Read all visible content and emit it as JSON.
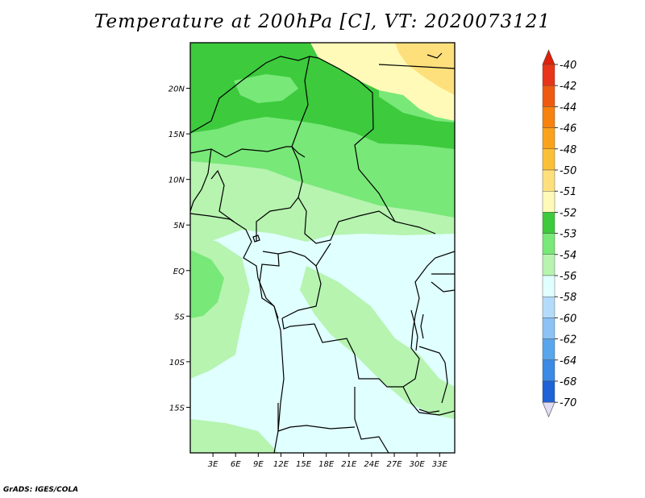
{
  "title": "Temperature at 200hPa [C], VT: 2020073121",
  "credit": "GrADS: IGES/COLA",
  "map": {
    "lon_range": [
      0,
      35
    ],
    "lat_range": [
      -20,
      25
    ],
    "lon_ticks": [
      {
        "value": 3,
        "label": "3E"
      },
      {
        "value": 6,
        "label": "6E"
      },
      {
        "value": 9,
        "label": "9E"
      },
      {
        "value": 12,
        "label": "12E"
      },
      {
        "value": 15,
        "label": "15E"
      },
      {
        "value": 18,
        "label": "18E"
      },
      {
        "value": 21,
        "label": "21E"
      },
      {
        "value": 24,
        "label": "24E"
      },
      {
        "value": 27,
        "label": "27E"
      },
      {
        "value": 30,
        "label": "30E"
      },
      {
        "value": 33,
        "label": "33E"
      }
    ],
    "lat_ticks": [
      {
        "value": 20,
        "label": "20N"
      },
      {
        "value": 15,
        "label": "15N"
      },
      {
        "value": 10,
        "label": "10N"
      },
      {
        "value": 5,
        "label": "5N"
      },
      {
        "value": 0,
        "label": "EQ"
      },
      {
        "value": -5,
        "label": "5S"
      },
      {
        "value": -10,
        "label": "10S"
      },
      {
        "value": -15,
        "label": "15S"
      }
    ]
  },
  "colorbar": {
    "top_arrow_color": "#e0200a",
    "bottom_arrow_color": "#e0dcf5",
    "levels": [
      {
        "label": "-40",
        "color": "#e83418"
      },
      {
        "label": "-42",
        "color": "#f05a10"
      },
      {
        "label": "-44",
        "color": "#f78210"
      },
      {
        "label": "-46",
        "color": "#fba21c"
      },
      {
        "label": "-48",
        "color": "#fcc038"
      },
      {
        "label": "-50",
        "color": "#fde07c"
      },
      {
        "label": "-51",
        "color": "#fffab8"
      },
      {
        "label": "-52",
        "color": "#3dca3d"
      },
      {
        "label": "-53",
        "color": "#78e878"
      },
      {
        "label": "-54",
        "color": "#b6f4b0"
      },
      {
        "label": "-56",
        "color": "#e0ffff"
      },
      {
        "label": "-58",
        "color": "#b4dcfa"
      },
      {
        "label": "-60",
        "color": "#8cc2f4"
      },
      {
        "label": "-62",
        "color": "#58a6ec"
      },
      {
        "label": "-64",
        "color": "#3a8ae6"
      },
      {
        "label": "-68",
        "color": "#1d62d6"
      },
      {
        "label": "-70",
        "color": "#0e3cba"
      }
    ],
    "last_color": "#0a1a8a"
  }
}
